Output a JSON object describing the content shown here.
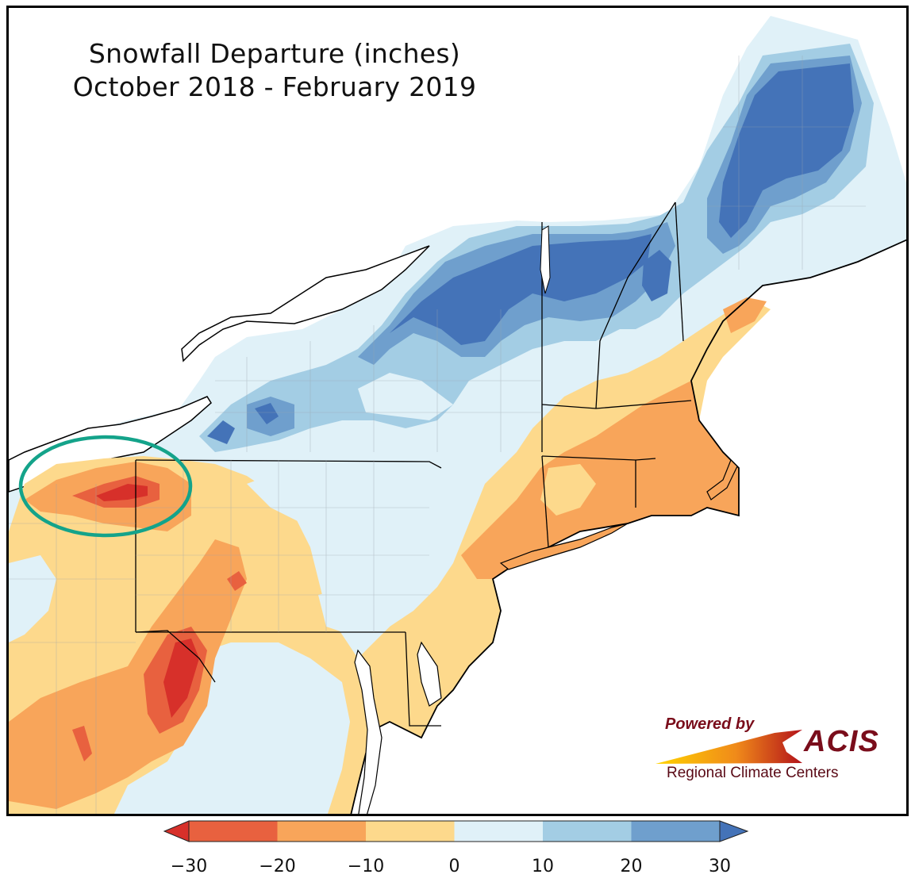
{
  "title": {
    "line1": "Snowfall Departure (inches)",
    "line2": "October 2018 - February 2019"
  },
  "legend": {
    "tick_labels": [
      "−30",
      "−20",
      "−10",
      "0",
      "10",
      "20",
      "30"
    ],
    "ticks": [
      -30,
      -20,
      -10,
      0,
      10,
      20,
      30
    ],
    "bins": [
      {
        "from": -30,
        "to": -20,
        "color": "#e8613f"
      },
      {
        "from": -20,
        "to": -10,
        "color": "#f8a55a"
      },
      {
        "from": -10,
        "to": 0,
        "color": "#fdd98c"
      },
      {
        "from": 0,
        "to": 10,
        "color": "#e0f1f8"
      },
      {
        "from": 10,
        "to": 20,
        "color": "#a3cde4"
      },
      {
        "from": 20,
        "to": 30,
        "color": "#6f9fcd"
      }
    ],
    "under_color": "#d7302a",
    "over_color": "#4473b8",
    "extend": "both"
  },
  "logo": {
    "powered_by": "Powered by",
    "brand": "ACIS",
    "subtitle": "Regional Climate Centers"
  },
  "annotation": {
    "shape": "ellipse",
    "color": "#14a38a",
    "highlighted_region": "NE Ohio / NW Pennsylvania (Lake Erie shore)"
  },
  "map": {
    "region": "Northeastern United States",
    "water_color": "#ffffff",
    "boundary_color": "#000000"
  }
}
